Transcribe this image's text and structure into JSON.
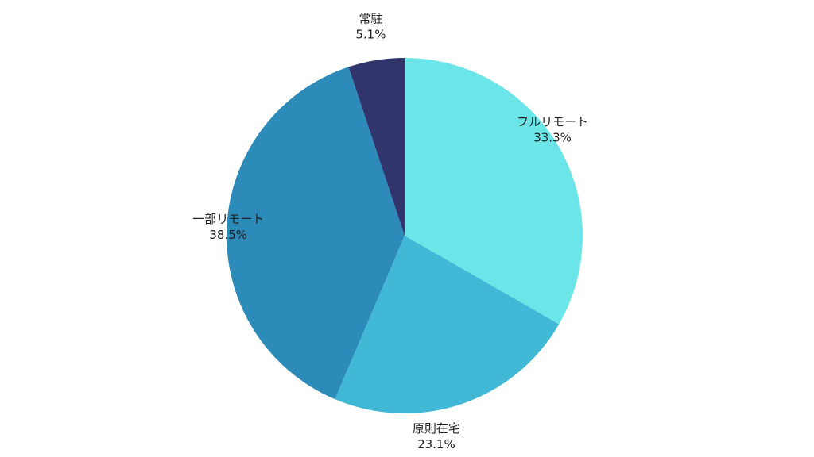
{
  "chart_data": {
    "type": "pie",
    "slices": [
      {
        "label": "フルリモート",
        "value": 33.3,
        "value_label": "33.3%",
        "color": "#6ce5e8"
      },
      {
        "label": "原則在宅",
        "value": 23.1,
        "value_label": "23.1%",
        "color": "#41b8d5"
      },
      {
        "label": "一部リモート",
        "value": 38.5,
        "value_label": "38.5%",
        "color": "#2d8bba"
      },
      {
        "label": "常駐",
        "value": 5.1,
        "value_label": "5.1%",
        "color": "#31356e"
      }
    ],
    "start_angle": "12 o'clock",
    "direction": "clockwise",
    "legend": "none"
  }
}
